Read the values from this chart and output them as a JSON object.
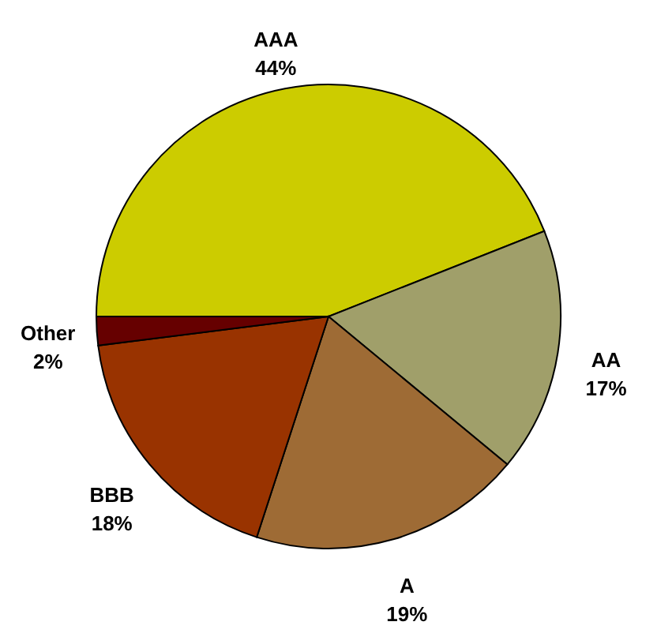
{
  "chart_data": {
    "type": "pie",
    "categories": [
      "AAA",
      "AA",
      "A",
      "BBB",
      "Other"
    ],
    "values": [
      44,
      17,
      19,
      18,
      2
    ],
    "value_labels": [
      "44%",
      "17%",
      "19%",
      "18%",
      "2%"
    ],
    "colors": [
      "#cccc00",
      "#a09f6a",
      "#9e6b35",
      "#993300",
      "#660000"
    ]
  }
}
